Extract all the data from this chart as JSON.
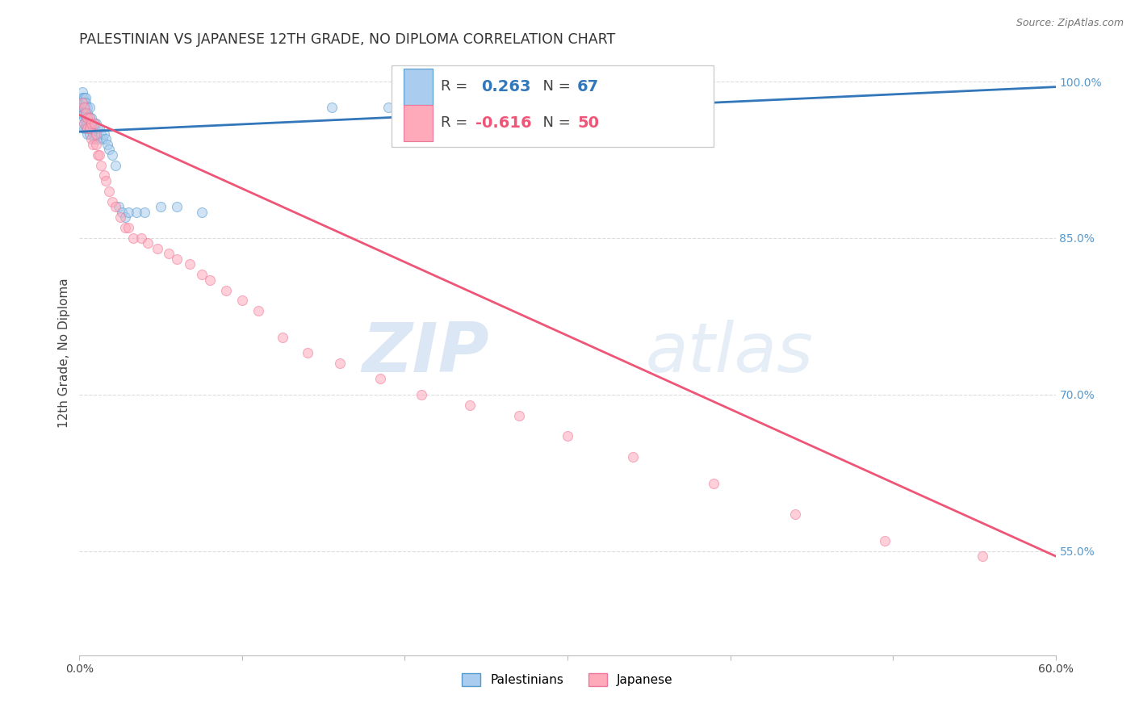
{
  "title": "PALESTINIAN VS JAPANESE 12TH GRADE, NO DIPLOMA CORRELATION CHART",
  "source": "Source: ZipAtlas.com",
  "ylabel": "12th Grade, No Diploma",
  "xlim": [
    0.0,
    0.6
  ],
  "ylim": [
    0.45,
    1.03
  ],
  "xticks": [
    0.0,
    0.1,
    0.2,
    0.3,
    0.4,
    0.5,
    0.6
  ],
  "xticklabels": [
    "0.0%",
    "",
    "",
    "",
    "",
    "",
    "60.0%"
  ],
  "yticks_right": [
    0.55,
    0.7,
    0.85,
    1.0
  ],
  "yticklabels_right": [
    "55.0%",
    "70.0%",
    "85.0%",
    "100.0%"
  ],
  "r_blue": "0.263",
  "n_blue": "67",
  "r_pink": "-0.616",
  "n_pink": "50",
  "palestinians_x": [
    0.001,
    0.001,
    0.001,
    0.002,
    0.002,
    0.002,
    0.002,
    0.003,
    0.003,
    0.003,
    0.003,
    0.003,
    0.003,
    0.003,
    0.004,
    0.004,
    0.004,
    0.004,
    0.004,
    0.004,
    0.004,
    0.005,
    0.005,
    0.005,
    0.005,
    0.005,
    0.005,
    0.006,
    0.006,
    0.006,
    0.006,
    0.006,
    0.007,
    0.007,
    0.007,
    0.008,
    0.008,
    0.008,
    0.009,
    0.009,
    0.009,
    0.01,
    0.01,
    0.011,
    0.011,
    0.012,
    0.013,
    0.014,
    0.015,
    0.016,
    0.017,
    0.018,
    0.02,
    0.022,
    0.024,
    0.026,
    0.028,
    0.03,
    0.035,
    0.04,
    0.05,
    0.06,
    0.075,
    0.155,
    0.19,
    0.21,
    0.275
  ],
  "palestinians_y": [
    0.98,
    0.975,
    0.97,
    0.99,
    0.985,
    0.98,
    0.975,
    0.985,
    0.98,
    0.975,
    0.97,
    0.965,
    0.96,
    0.955,
    0.985,
    0.98,
    0.975,
    0.97,
    0.965,
    0.96,
    0.955,
    0.975,
    0.97,
    0.965,
    0.96,
    0.955,
    0.95,
    0.975,
    0.965,
    0.96,
    0.955,
    0.95,
    0.965,
    0.96,
    0.955,
    0.96,
    0.955,
    0.95,
    0.96,
    0.955,
    0.945,
    0.96,
    0.95,
    0.955,
    0.945,
    0.955,
    0.95,
    0.945,
    0.95,
    0.945,
    0.94,
    0.935,
    0.93,
    0.92,
    0.88,
    0.875,
    0.87,
    0.875,
    0.875,
    0.875,
    0.88,
    0.88,
    0.875,
    0.975,
    0.975,
    0.975,
    0.98
  ],
  "japanese_x": [
    0.002,
    0.003,
    0.003,
    0.004,
    0.005,
    0.005,
    0.006,
    0.006,
    0.007,
    0.007,
    0.008,
    0.009,
    0.01,
    0.01,
    0.011,
    0.012,
    0.013,
    0.015,
    0.016,
    0.018,
    0.02,
    0.022,
    0.025,
    0.028,
    0.03,
    0.033,
    0.038,
    0.042,
    0.048,
    0.055,
    0.06,
    0.068,
    0.075,
    0.08,
    0.09,
    0.1,
    0.11,
    0.125,
    0.14,
    0.16,
    0.185,
    0.21,
    0.24,
    0.27,
    0.3,
    0.34,
    0.39,
    0.44,
    0.495,
    0.555
  ],
  "japanese_y": [
    0.98,
    0.975,
    0.96,
    0.97,
    0.965,
    0.955,
    0.965,
    0.955,
    0.96,
    0.945,
    0.94,
    0.96,
    0.95,
    0.94,
    0.93,
    0.93,
    0.92,
    0.91,
    0.905,
    0.895,
    0.885,
    0.88,
    0.87,
    0.86,
    0.86,
    0.85,
    0.85,
    0.845,
    0.84,
    0.835,
    0.83,
    0.825,
    0.815,
    0.81,
    0.8,
    0.79,
    0.78,
    0.755,
    0.74,
    0.73,
    0.715,
    0.7,
    0.69,
    0.68,
    0.66,
    0.64,
    0.615,
    0.585,
    0.56,
    0.545
  ],
  "blue_line_x": [
    0.0,
    0.6
  ],
  "blue_line_y": [
    0.952,
    0.995
  ],
  "pink_line_x": [
    0.0,
    0.6
  ],
  "pink_line_y": [
    0.968,
    0.545
  ],
  "watermark_top": "ZIP",
  "watermark_bottom": "atlas",
  "dot_size": 75,
  "dot_alpha": 0.55,
  "blue_color": "#aaccee",
  "blue_edge_color": "#5599cc",
  "pink_color": "#ffaabb",
  "pink_edge_color": "#ee7799",
  "blue_line_color": "#3377bb",
  "pink_line_color": "#ee5577",
  "grid_color": "#dddddd",
  "background_color": "#ffffff",
  "title_fontsize": 12.5,
  "axis_label_fontsize": 11,
  "tick_fontsize": 10,
  "source_fontsize": 9
}
